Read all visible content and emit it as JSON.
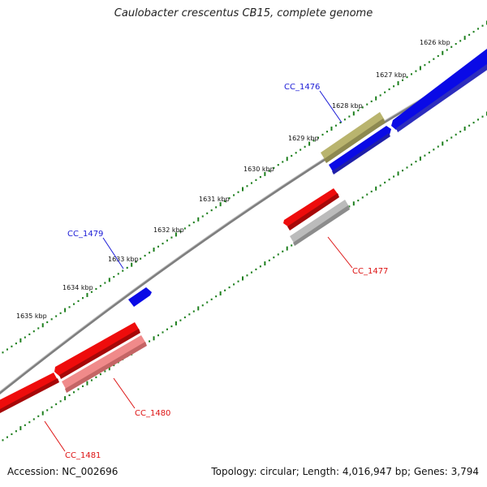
{
  "title": "Caulobacter crescentus CB15, complete genome",
  "footer": {
    "accession": "Accession: NC_002696",
    "topology": "Topology: circular; Length: 4,016,947 bp; Genes: 3,794"
  },
  "kbp_ticks": [
    "1626 kbp",
    "1627 kbp",
    "1628 kbp",
    "1629 kbp",
    "1630 kbp",
    "1631 kbp",
    "1632 kbp",
    "1633 kbp",
    "1634 kbp",
    "1635 kbp"
  ],
  "genes": [
    {
      "name": "CC_1476",
      "color": "#1a1ad6"
    },
    {
      "name": "CC_1477",
      "color": "#dd1111"
    },
    {
      "name": "CC_1479",
      "color": "#1a1ad6"
    },
    {
      "name": "CC_1480",
      "color": "#dd1111"
    },
    {
      "name": "CC_1481",
      "color": "#dd1111"
    }
  ],
  "colors": {
    "forward_cds": "#0a0ae6",
    "reverse_cds": "#ee0c0c",
    "rna": "#b9b46e",
    "pseudo": "#bbbbbb",
    "light_reverse": "#f08a8a",
    "backbone": "#7f7f7f",
    "ticks": "#1d7f1d"
  }
}
